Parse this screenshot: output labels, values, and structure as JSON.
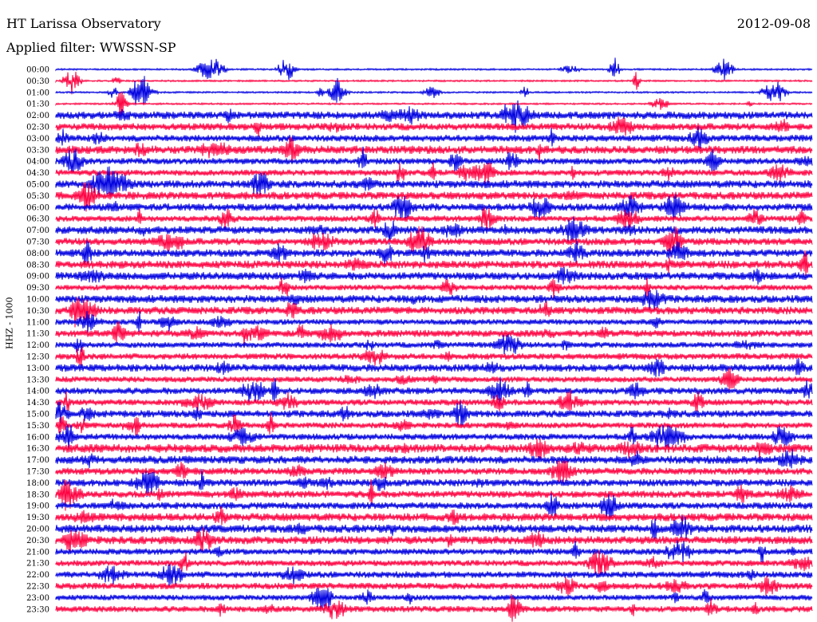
{
  "header": {
    "title": "HT Larissa Observatory",
    "date": "2012-09-08",
    "filter": "Applied filter: WWSSN-SP"
  },
  "colors": {
    "trace_a": "#0000e0",
    "trace_b": "#ff0040"
  },
  "chart_data": {
    "type": "line",
    "title": "HT Larissa Observatory",
    "ylabel": "HHZ - 1000",
    "traces": [
      "00:00",
      "00:30",
      "01:00",
      "01:30",
      "02:00",
      "02:30",
      "03:00",
      "03:30",
      "04:00",
      "04:30",
      "05:00",
      "05:30",
      "06:00",
      "06:30",
      "07:00",
      "07:30",
      "08:00",
      "08:30",
      "09:00",
      "09:30",
      "10:00",
      "10:30",
      "11:00",
      "11:30",
      "12:00",
      "12:30",
      "13:00",
      "13:30",
      "14:00",
      "14:30",
      "15:00",
      "15:30",
      "16:00",
      "16:30",
      "17:00",
      "17:30",
      "18:00",
      "18:30",
      "19:00",
      "19:30",
      "20:00",
      "20:30",
      "21:00",
      "21:30",
      "22:00",
      "22:30",
      "23:00",
      "23:30"
    ],
    "colors_cycle": [
      "blue",
      "red"
    ]
  }
}
